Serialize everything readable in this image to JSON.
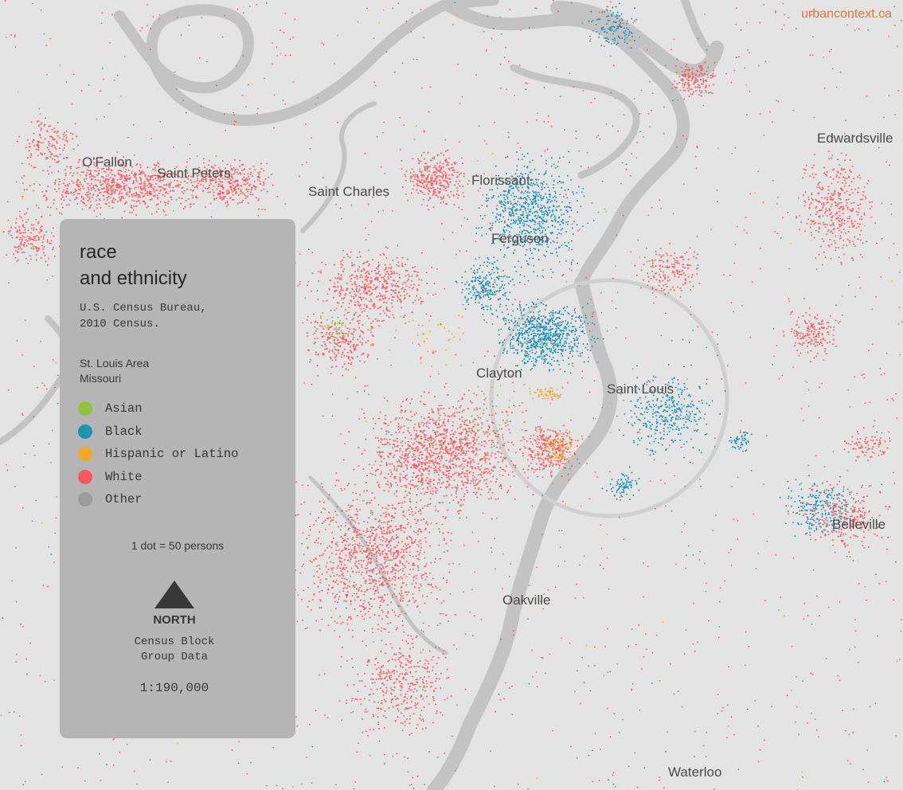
{
  "credit": "urbancontext.ca",
  "cities": [
    "O'Fallon",
    "Saint Peters",
    "Saint Charles",
    "Florissant",
    "Ferguson",
    "Clayton",
    "Saint Louis",
    "Edwardsville",
    "Belleville",
    "Oakville",
    "Waterloo"
  ],
  "legend": {
    "title_line1": "race",
    "title_line2": "and ethnicity",
    "source": "U.S. Census Bureau,\n2010 Census.",
    "region_line1": "St. Louis Area",
    "region_line2": "Missouri",
    "items": [
      {
        "label": "Asian",
        "color": "#8dbf3a"
      },
      {
        "label": "Black",
        "color": "#1a8fb0"
      },
      {
        "label": "Hispanic or Latino",
        "color": "#f5a623"
      },
      {
        "label": "White",
        "color": "#f4555a"
      },
      {
        "label": "Other",
        "color": "#9a9a9a"
      }
    ],
    "dot_scale": "1 dot = 50 persons",
    "north_label": "NORTH",
    "data_note": "Census Block\nGroup Data",
    "scale_ratio": "1:190,000"
  }
}
